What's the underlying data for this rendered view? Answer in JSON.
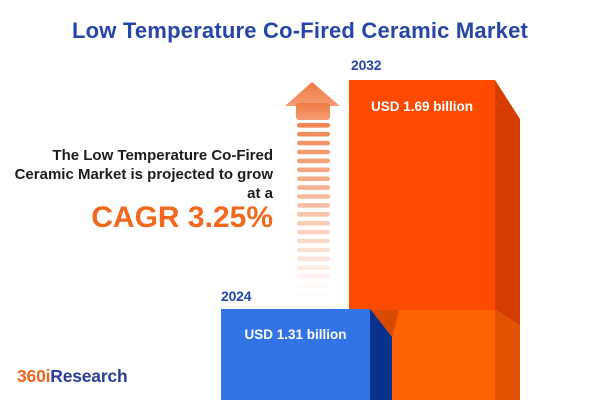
{
  "title": "Low Temperature Co-Fired Ceramic Market",
  "annotation": {
    "line1": "The Low Temperature Co-Fired",
    "line2": "Ceramic Market is projected to grow",
    "line3": "at a",
    "cagr": "CAGR 3.25%"
  },
  "bars": {
    "b2024": {
      "year": "2024",
      "value_label": "USD 1.31 billion"
    },
    "b2032": {
      "year": "2032",
      "value_label": "USD 1.69 billion"
    }
  },
  "logo": {
    "part1": "360i",
    "part2": "Research"
  },
  "colors": {
    "title_blue": "#2645A8",
    "body_text": "#1C1C1C",
    "cagr_orange": "#F2681C",
    "bar_2024_front": "#3273E6",
    "bar_2024_side": "#0A318C",
    "bar_2032_front_top": "#FC4A03",
    "bar_2032_front_bottom": "#FF6200",
    "bar_2032_side_top": "#D63E00",
    "bar_2032_side_bottom": "#DE5200",
    "arrow_salmon": "#F0814B",
    "logo_orange": "#F26322",
    "logo_navy": "#2B3C96",
    "background": "#FFFFFF"
  },
  "chart_data": {
    "type": "bar",
    "title": "Low Temperature Co-Fired Ceramic Market",
    "categories": [
      "2024",
      "2032"
    ],
    "values": [
      1.31,
      1.69
    ],
    "unit": "USD billion",
    "data_labels": [
      "USD 1.31 billion",
      "USD 1.69 billion"
    ],
    "cagr_percent": 3.25,
    "annotation": "The Low Temperature Co-Fired Ceramic Market is projected to grow at a CAGR 3.25%",
    "legend": false,
    "grid": false,
    "series_colors": [
      "#3273E6",
      "#FC4A03"
    ]
  }
}
